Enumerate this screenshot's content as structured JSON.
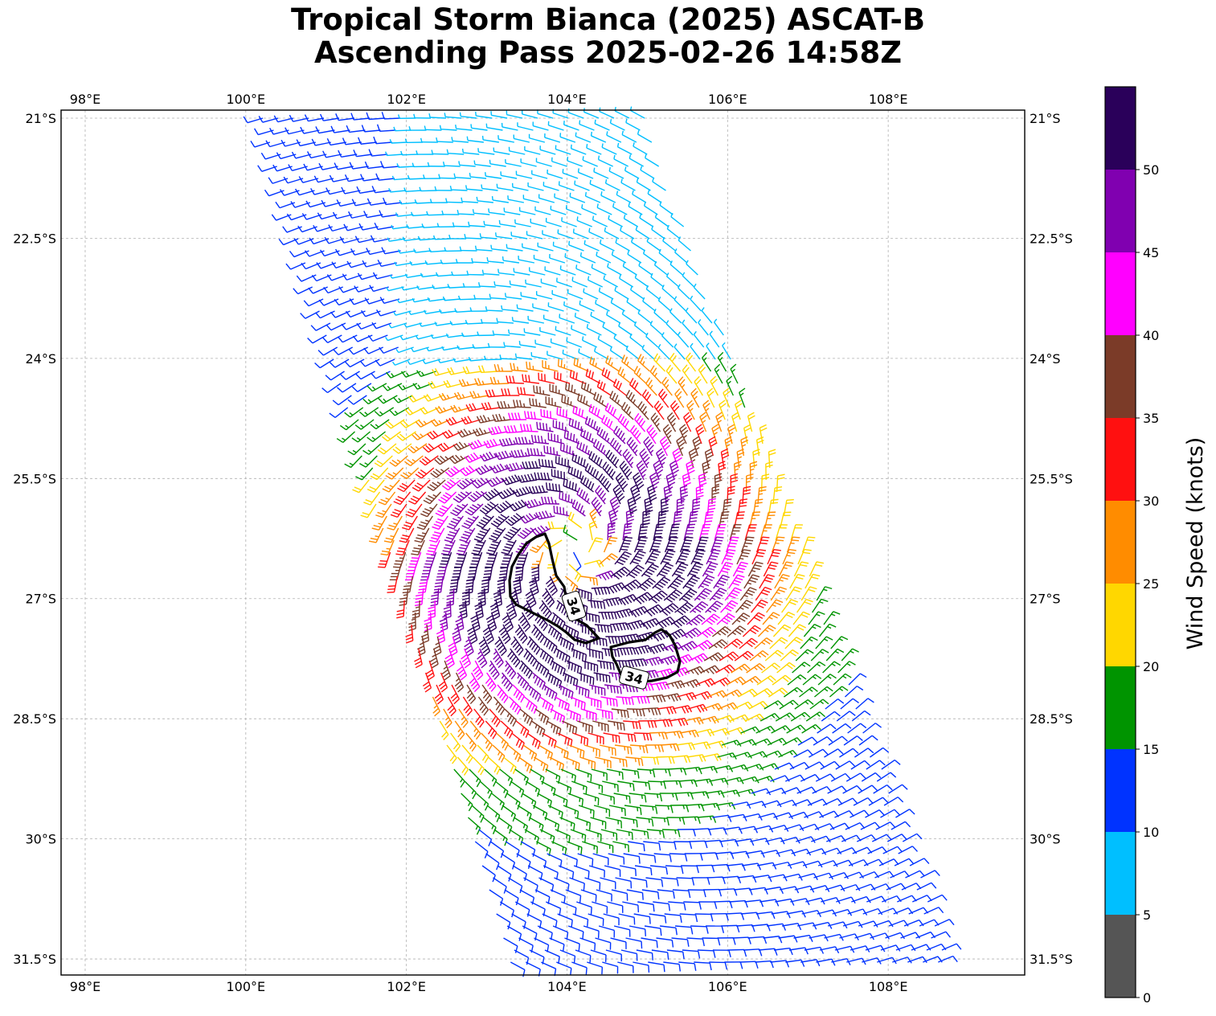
{
  "title": {
    "line1": "Tropical Storm Bianca (2025) ASCAT-B",
    "line2": "Ascending Pass 2025-02-26 14:58Z"
  },
  "map": {
    "lon_ticks": [
      "98°E",
      "100°E",
      "102°E",
      "104°E",
      "106°E",
      "108°E"
    ],
    "lon_values": [
      98,
      100,
      102,
      104,
      106,
      108
    ],
    "lat_ticks": [
      "21°S",
      "22.5°S",
      "24°S",
      "25.5°S",
      "27°S",
      "28.5°S",
      "30°S",
      "31.5°S"
    ],
    "lat_values": [
      -21,
      -22.5,
      -24,
      -25.5,
      -27,
      -28.5,
      -30,
      -31.5
    ],
    "lon_range": [
      97.7,
      109.7
    ],
    "lat_range": [
      -31.7,
      -20.9
    ],
    "gridlines": true,
    "storm_center": {
      "lon": 104.1,
      "lat": -26.4
    },
    "contour_labels": [
      "34",
      "34"
    ],
    "contour_value_kt": 34
  },
  "colorbar": {
    "label": "Wind Speed (knots)",
    "tick_labels": [
      "0",
      "5",
      "10",
      "15",
      "20",
      "25",
      "30",
      "35",
      "40",
      "45",
      "50"
    ],
    "bins": [
      {
        "from": 0,
        "to": 5,
        "color": "#555555"
      },
      {
        "from": 5,
        "to": 10,
        "color": "#00bfff"
      },
      {
        "from": 10,
        "to": 15,
        "color": "#0033ff"
      },
      {
        "from": 15,
        "to": 20,
        "color": "#009400"
      },
      {
        "from": 20,
        "to": 25,
        "color": "#ffd700"
      },
      {
        "from": 25,
        "to": 30,
        "color": "#ff8c00"
      },
      {
        "from": 30,
        "to": 35,
        "color": "#ff1010"
      },
      {
        "from": 35,
        "to": 40,
        "color": "#7b3b28"
      },
      {
        "from": 40,
        "to": 45,
        "color": "#ff00ff"
      },
      {
        "from": 45,
        "to": 50,
        "color": "#8000b0"
      },
      {
        "from": 50,
        "to": 55,
        "color": "#2a005a"
      }
    ]
  }
}
